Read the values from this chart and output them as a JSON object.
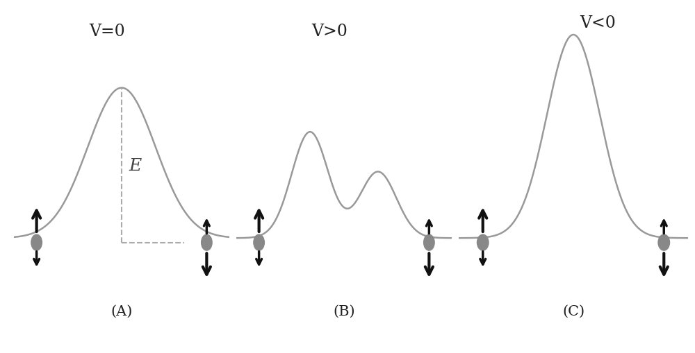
{
  "background_color": "#ffffff",
  "curve_color": "#999999",
  "curve_linewidth": 1.8,
  "arrow_color": "#111111",
  "circle_color": "#888888",
  "dashed_color": "#aaaaaa",
  "label_A": "(A)",
  "label_B": "(B)",
  "label_C": "(C)",
  "title_A": "V=0",
  "title_B": "V>0",
  "title_C": "V<0",
  "E_label": "E",
  "label_fontsize": 15,
  "title_fontsize": 17,
  "panels": [
    "A",
    "B",
    "C"
  ]
}
